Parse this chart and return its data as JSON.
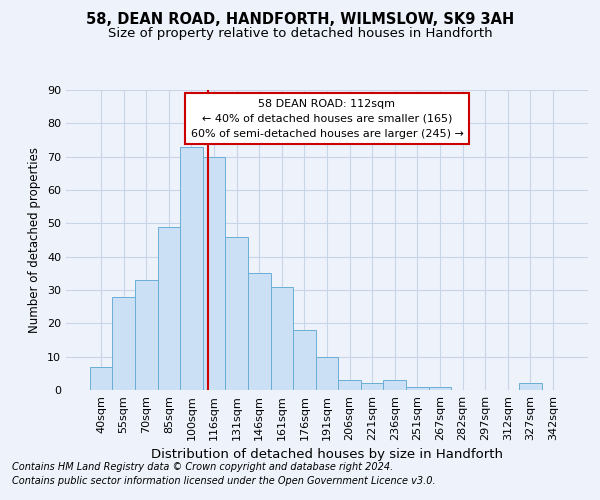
{
  "title1": "58, DEAN ROAD, HANDFORTH, WILMSLOW, SK9 3AH",
  "title2": "Size of property relative to detached houses in Handforth",
  "xlabel": "Distribution of detached houses by size in Handforth",
  "ylabel": "Number of detached properties",
  "bar_color": "#cce0f5",
  "bar_edge_color": "#6baed6",
  "categories": [
    "40sqm",
    "55sqm",
    "70sqm",
    "85sqm",
    "100sqm",
    "116sqm",
    "131sqm",
    "146sqm",
    "161sqm",
    "176sqm",
    "191sqm",
    "206sqm",
    "221sqm",
    "236sqm",
    "251sqm",
    "267sqm",
    "282sqm",
    "297sqm",
    "312sqm",
    "327sqm",
    "342sqm"
  ],
  "values": [
    7,
    28,
    33,
    49,
    73,
    70,
    46,
    35,
    31,
    18,
    10,
    3,
    2,
    3,
    1,
    1,
    0,
    0,
    0,
    2,
    0
  ],
  "ylim": [
    0,
    90
  ],
  "yticks": [
    0,
    10,
    20,
    30,
    40,
    50,
    60,
    70,
    80,
    90
  ],
  "annotation_text_line1": "58 DEAN ROAD: 112sqm",
  "annotation_text_line2": "← 40% of detached houses are smaller (165)",
  "annotation_text_line3": "60% of semi-detached houses are larger (245) →",
  "footer1": "Contains HM Land Registry data © Crown copyright and database right 2024.",
  "footer2": "Contains public sector information licensed under the Open Government Licence v3.0.",
  "background_color": "#eef2fa",
  "grid_color": "#c8d4e8",
  "annotation_box_color": "#ffffff",
  "annotation_box_edge_color": "#cc0000",
  "vline_color": "#cc0000",
  "title1_fontsize": 10.5,
  "title2_fontsize": 9.5,
  "xlabel_fontsize": 9.5,
  "ylabel_fontsize": 8.5,
  "tick_fontsize": 8,
  "annotation_fontsize": 8,
  "footer_fontsize": 7
}
